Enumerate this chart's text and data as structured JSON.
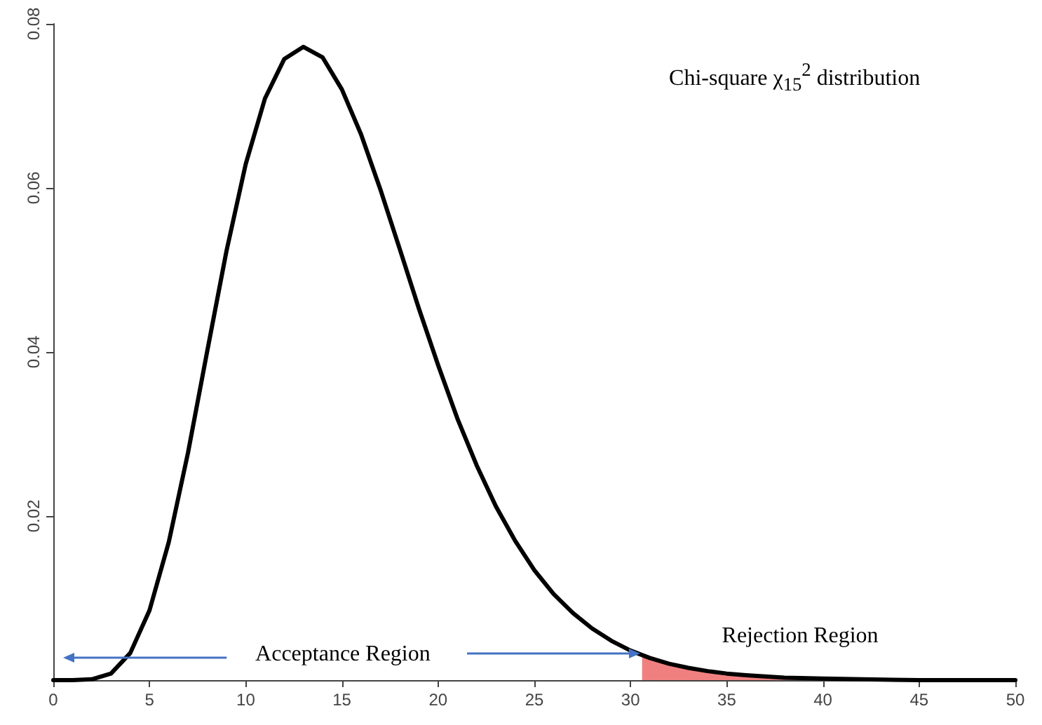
{
  "chart_data": {
    "type": "line",
    "title": "Chi-square χ$_{15}$$^{2}$ distribution",
    "annotations": [
      "Acceptance Region",
      "Rejection Region"
    ],
    "series": [
      {
        "type": "line",
        "color": "#000000",
        "x": [
          0,
          1,
          2,
          3,
          4,
          5,
          6,
          7,
          8,
          9,
          10,
          11,
          12,
          13,
          14,
          15,
          16,
          17,
          18,
          19,
          20,
          21,
          22,
          23,
          24,
          25,
          26,
          27,
          28,
          29,
          30,
          31,
          32,
          33,
          34,
          35,
          36,
          38,
          40,
          42,
          45,
          50
        ],
        "values": [
          0,
          0,
          0.0001,
          0.0008,
          0.0033,
          0.0085,
          0.0168,
          0.0277,
          0.0401,
          0.0523,
          0.0629,
          0.0709,
          0.0757,
          0.0772,
          0.0759,
          0.072,
          0.0665,
          0.0598,
          0.0526,
          0.0453,
          0.0384,
          0.0319,
          0.0262,
          0.0212,
          0.017,
          0.0134,
          0.0105,
          0.0082,
          0.0063,
          0.0048,
          0.0036,
          0.0027,
          0.002,
          0.0015,
          0.0011,
          0.0008,
          0.0006,
          0.0003,
          0.0002,
          0.0001,
          0,
          0
        ]
      },
      {
        "type": "area",
        "color": "#f08080",
        "x": [
          30.6,
          31,
          32,
          33,
          34,
          35,
          36,
          38,
          40,
          42,
          45,
          50
        ],
        "values": [
          0.0031,
          0.0027,
          0.002,
          0.0015,
          0.0011,
          0.0008,
          0.0006,
          0.0003,
          0.0002,
          0.0001,
          0,
          0
        ]
      }
    ],
    "xlim": [
      0,
      50
    ],
    "xticks": [
      0,
      5,
      10,
      15,
      20,
      25,
      30,
      35,
      40,
      45,
      50
    ],
    "ylim": [
      0,
      0.08
    ],
    "yticks": [
      0.02,
      0.04,
      0.06,
      0.08
    ],
    "marker": "none",
    "line_style": "solid",
    "grid": false
  }
}
